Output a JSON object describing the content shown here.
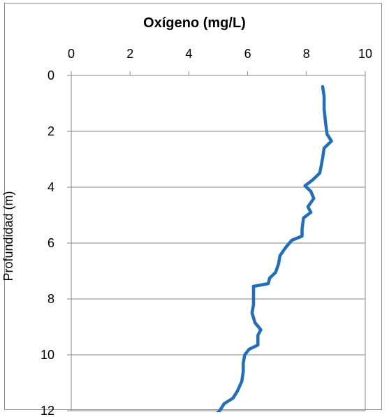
{
  "chart_data": {
    "type": "line",
    "title": "Oxígeno (mg/L)",
    "xlabel": "Oxígeno (mg/L)",
    "ylabel": "Profundidad (m)",
    "x_axis_position": "top",
    "y_axis_inverted": true,
    "xlim": [
      0,
      10
    ],
    "ylim": [
      0,
      12
    ],
    "x_ticks": [
      "0",
      "2",
      "4",
      "6",
      "8",
      "10"
    ],
    "y_ticks": [
      "0",
      "2",
      "4",
      "6",
      "8",
      "10",
      "12"
    ],
    "grid": "horizontal",
    "legend": "none",
    "series": [
      {
        "color": "#1f6fc1",
        "points": [
          [
            8.55,
            0.4
          ],
          [
            8.6,
            0.75
          ],
          [
            8.6,
            1.2
          ],
          [
            8.65,
            1.7
          ],
          [
            8.7,
            2.1
          ],
          [
            8.85,
            2.35
          ],
          [
            8.6,
            2.6
          ],
          [
            8.55,
            2.95
          ],
          [
            8.5,
            3.25
          ],
          [
            8.45,
            3.5
          ],
          [
            8.2,
            3.75
          ],
          [
            7.95,
            3.95
          ],
          [
            8.15,
            4.15
          ],
          [
            8.25,
            4.4
          ],
          [
            8.05,
            4.7
          ],
          [
            8.15,
            4.9
          ],
          [
            7.9,
            5.1
          ],
          [
            7.85,
            5.5
          ],
          [
            7.85,
            5.75
          ],
          [
            7.5,
            5.9
          ],
          [
            7.3,
            6.15
          ],
          [
            7.1,
            6.45
          ],
          [
            7.05,
            6.75
          ],
          [
            6.95,
            7.05
          ],
          [
            6.75,
            7.25
          ],
          [
            6.7,
            7.45
          ],
          [
            6.2,
            7.55
          ],
          [
            6.2,
            7.9
          ],
          [
            6.2,
            8.2
          ],
          [
            6.15,
            8.5
          ],
          [
            6.25,
            8.85
          ],
          [
            6.45,
            9.1
          ],
          [
            6.35,
            9.3
          ],
          [
            6.35,
            9.65
          ],
          [
            6.05,
            9.8
          ],
          [
            5.9,
            10.0
          ],
          [
            5.85,
            10.3
          ],
          [
            5.85,
            10.6
          ],
          [
            5.8,
            10.95
          ],
          [
            5.65,
            11.3
          ],
          [
            5.5,
            11.55
          ],
          [
            5.2,
            11.75
          ],
          [
            5.05,
            12.0
          ],
          [
            4.95,
            12.1
          ]
        ]
      }
    ]
  }
}
